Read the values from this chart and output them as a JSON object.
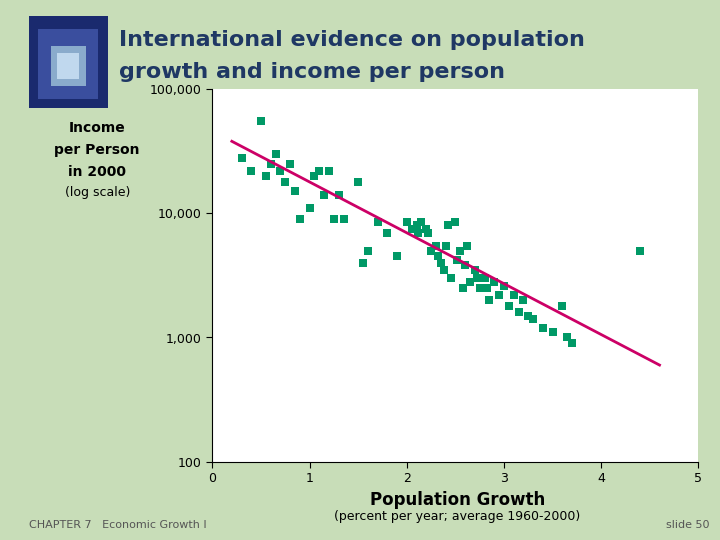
{
  "title_line1": "International evidence on population",
  "title_line2": "growth and income per person",
  "title_color": "#1F3864",
  "ylabel_line1": "Income",
  "ylabel_line2": "per Person",
  "ylabel_line3": "in 2000",
  "ylabel_line4": "(log scale)",
  "xlabel_line1": "Population Growth",
  "xlabel_line2": "(percent per year; average 1960-2000)",
  "footer_left": "CHAPTER 7   Economic Growth I",
  "footer_right": "slide 50",
  "scatter_color": "#009966",
  "trendline_color": "#CC0066",
  "bg_color": "#FFFFFF",
  "outer_bg": "#C8DDB8",
  "left_strip_color": "#C8E8B0",
  "scatter_x": [
    0.3,
    0.4,
    0.5,
    0.55,
    0.6,
    0.65,
    0.7,
    0.75,
    0.8,
    0.85,
    0.9,
    1.0,
    1.05,
    1.1,
    1.15,
    1.2,
    1.25,
    1.3,
    1.35,
    1.5,
    1.55,
    1.6,
    1.7,
    1.8,
    1.9,
    2.0,
    2.05,
    2.1,
    2.12,
    2.15,
    2.2,
    2.22,
    2.25,
    2.3,
    2.32,
    2.35,
    2.38,
    2.4,
    2.42,
    2.45,
    2.5,
    2.52,
    2.55,
    2.58,
    2.6,
    2.62,
    2.65,
    2.7,
    2.72,
    2.75,
    2.8,
    2.82,
    2.85,
    2.9,
    2.95,
    3.0,
    3.05,
    3.1,
    3.15,
    3.2,
    3.25,
    3.3,
    3.4,
    3.5,
    3.6,
    3.65,
    3.7,
    4.4
  ],
  "scatter_y": [
    28000,
    22000,
    55000,
    20000,
    25000,
    30000,
    22000,
    18000,
    25000,
    15000,
    9000,
    11000,
    20000,
    22000,
    14000,
    22000,
    9000,
    14000,
    9000,
    18000,
    4000,
    5000,
    8500,
    7000,
    4500,
    8500,
    7500,
    8000,
    7000,
    8500,
    7500,
    7000,
    5000,
    5500,
    4500,
    4000,
    3500,
    5500,
    8000,
    3000,
    8500,
    4200,
    5000,
    2500,
    3800,
    5500,
    2800,
    3500,
    3000,
    2500,
    3000,
    2500,
    2000,
    2800,
    2200,
    2600,
    1800,
    2200,
    1600,
    2000,
    1500,
    1400,
    1200,
    1100,
    1800,
    1000,
    900,
    5000
  ],
  "trend_x": [
    0.2,
    4.6
  ],
  "trend_y": [
    38000,
    600
  ],
  "xlim": [
    0,
    5
  ],
  "ylim_log": [
    100,
    100000
  ],
  "xticks": [
    0,
    1,
    2,
    3,
    4,
    5
  ],
  "yticks": [
    100,
    1000,
    10000,
    100000
  ],
  "ytick_labels": [
    "100",
    "1,000",
    "10,000",
    "100,000"
  ],
  "marker_size": 6
}
